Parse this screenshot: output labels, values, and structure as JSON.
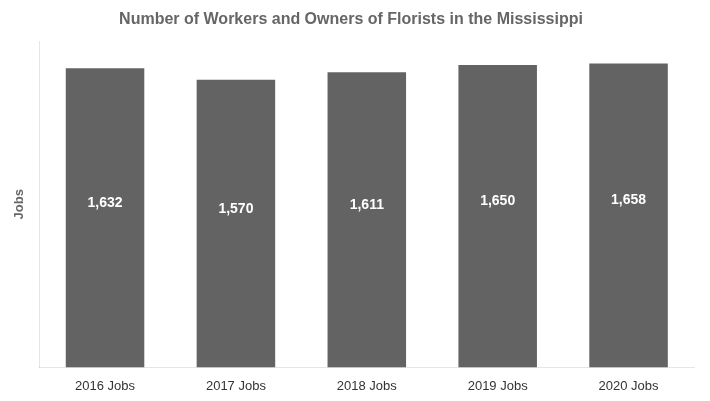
{
  "chart_data": {
    "type": "bar",
    "title": "Number of Workers and Owners of Florists in the Mississippi",
    "categories": [
      "2016 Jobs",
      "2017 Jobs",
      "2018 Jobs",
      "2019 Jobs",
      "2020 Jobs"
    ],
    "values": [
      1632,
      1570,
      1611,
      1650,
      1658
    ],
    "value_labels": [
      "1,632",
      "1,570",
      "1,611",
      "1,650",
      "1,658"
    ],
    "data_labels": true,
    "color": "#636363",
    "ylabel": "Jobs",
    "ylim": [
      0,
      1780
    ],
    "tick_labels": "x",
    "grid": false,
    "legend": "none"
  }
}
